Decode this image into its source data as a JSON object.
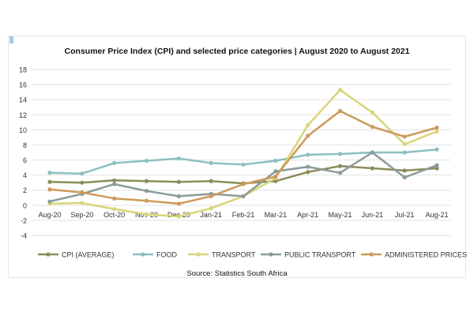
{
  "chart_data": {
    "type": "line",
    "title": "Consumer Price Index (CPI) and selected price categories | August 2020 to August 2021",
    "source": "Source: Statistics South Africa",
    "x": [
      "Aug-20",
      "Sep-20",
      "Oct-20",
      "Nov-20",
      "Dec-20",
      "Jan-21",
      "Feb-21",
      "Mar-21",
      "Apr-21",
      "May-21",
      "Jun-21",
      "Jul-21",
      "Aug-21"
    ],
    "ylim": [
      -4,
      18
    ],
    "yticks": [
      -4,
      -2,
      0,
      2,
      4,
      6,
      8,
      10,
      12,
      14,
      16,
      18
    ],
    "grid": true,
    "legend_position": "bottom",
    "series": [
      {
        "name": "CPI (AVERAGE)",
        "color": "#8c8c5a",
        "values": [
          3.1,
          3.0,
          3.3,
          3.2,
          3.1,
          3.2,
          2.9,
          3.2,
          4.4,
          5.2,
          4.9,
          4.6,
          4.9
        ]
      },
      {
        "name": "FOOD",
        "color": "#8cc0bf",
        "values": [
          4.3,
          4.2,
          5.6,
          5.9,
          6.2,
          5.6,
          5.4,
          5.9,
          6.7,
          6.8,
          7.0,
          7.0,
          7.4
        ]
      },
      {
        "name": "TRANSPORT",
        "color": "#d9d57a",
        "values": [
          0.2,
          0.3,
          -0.5,
          -1.2,
          -1.5,
          -0.4,
          1.2,
          3.6,
          10.6,
          15.3,
          12.3,
          8.1,
          9.8
        ]
      },
      {
        "name": "PUBLIC TRANSPORT",
        "color": "#8a9c99",
        "values": [
          0.5,
          1.5,
          2.8,
          1.9,
          1.2,
          1.5,
          1.2,
          4.5,
          5.1,
          4.3,
          7.0,
          3.7,
          5.3
        ]
      },
      {
        "name": "ADMINISTERED PRICES",
        "color": "#cd9a5b",
        "values": [
          2.1,
          1.7,
          0.9,
          0.6,
          0.2,
          1.2,
          2.8,
          3.8,
          9.2,
          12.5,
          10.4,
          9.1,
          10.3
        ]
      }
    ]
  }
}
